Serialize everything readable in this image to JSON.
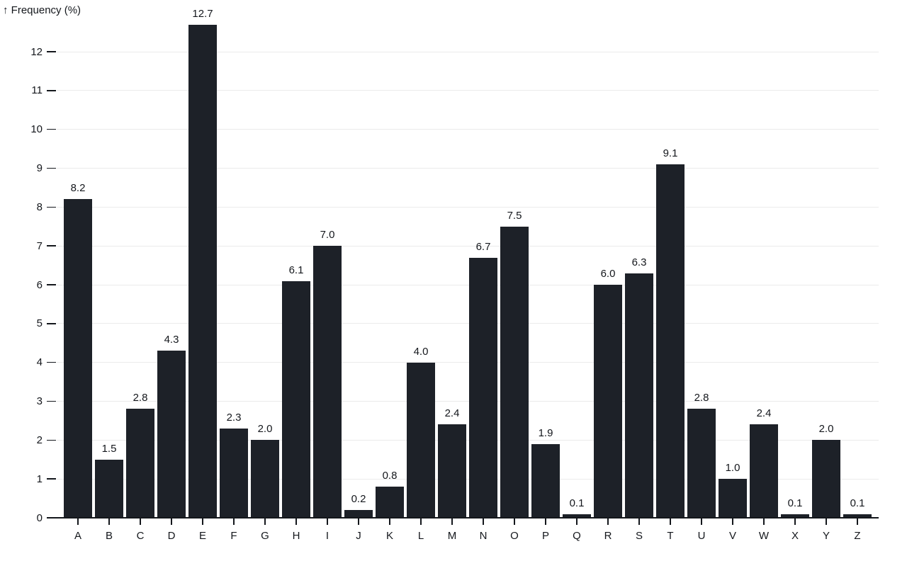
{
  "chart_data": {
    "type": "bar",
    "title": "↑ Frequency (%)",
    "ylabel": "Frequency (%)",
    "xlabel": "",
    "categories": [
      "A",
      "B",
      "C",
      "D",
      "E",
      "F",
      "G",
      "H",
      "I",
      "J",
      "K",
      "L",
      "M",
      "N",
      "O",
      "P",
      "Q",
      "R",
      "S",
      "T",
      "U",
      "V",
      "W",
      "X",
      "Y",
      "Z"
    ],
    "values": [
      8.2,
      1.5,
      2.8,
      4.3,
      12.7,
      2.3,
      2.0,
      6.1,
      7.0,
      0.2,
      0.8,
      4.0,
      2.4,
      6.7,
      7.5,
      1.9,
      0.1,
      6.0,
      6.3,
      9.1,
      2.8,
      1.0,
      2.4,
      0.1,
      2.0,
      0.1
    ],
    "bar_labels": [
      "8.2",
      "1.5",
      "2.8",
      "4.3",
      "12.7",
      "2.3",
      "2.0",
      "6.1",
      "7.0",
      "0.2",
      "0.8",
      "4.0",
      "2.4",
      "6.7",
      "7.5",
      "1.9",
      "0.1",
      "6.0",
      "6.3",
      "9.1",
      "2.8",
      "1.0",
      "2.4",
      "0.1",
      "2.0",
      "0.1"
    ],
    "y_ticks": [
      0,
      1,
      2,
      3,
      4,
      5,
      6,
      7,
      8,
      9,
      10,
      11,
      12
    ],
    "ylim": [
      0,
      12.7
    ],
    "grid": true,
    "legend": "none",
    "colors": {
      "bar": "#1d2128",
      "grid": "#ebebeb",
      "axis": "#14171c",
      "text": "#14171c",
      "background": "#ffffff"
    }
  }
}
